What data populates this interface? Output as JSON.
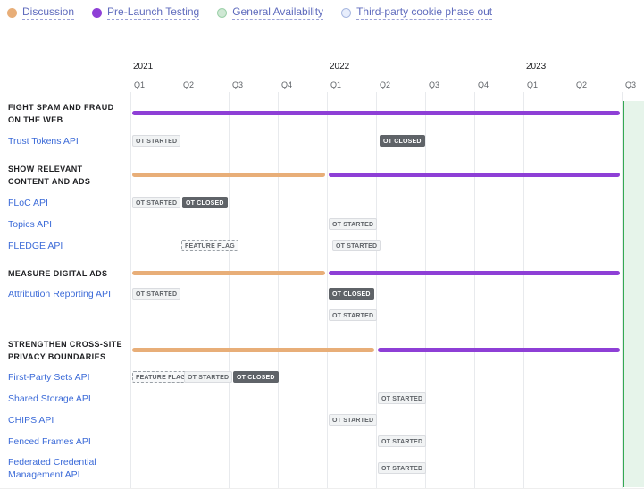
{
  "legend": {
    "discussion": {
      "label": "Discussion",
      "color": "#e8ae78"
    },
    "testing": {
      "label": "Pre-Launch Testing",
      "color": "#8e3fd6"
    },
    "ga": {
      "label": "General Availability",
      "color": "#cfe8d4"
    },
    "cookie": {
      "label": "Third-party cookie phase out",
      "color": "#e8eefc"
    }
  },
  "timeline": {
    "years": [
      "2021",
      "2022",
      "2023"
    ],
    "quarters": [
      "Q1",
      "Q2",
      "Q3",
      "Q4",
      "Q1",
      "Q2",
      "Q3",
      "Q4",
      "Q1",
      "Q2",
      "Q3"
    ]
  },
  "sections": [
    {
      "title": "FIGHT SPAM AND FRAUD\nON THE WEB"
    },
    {
      "title": "SHOW RELEVANT\nCONTENT AND ADS"
    },
    {
      "title": "MEASURE DIGITAL ADS"
    },
    {
      "title": "STRENGTHEN CROSS-SITE\nPRIVACY BOUNDARIES"
    }
  ],
  "apis": [
    {
      "name": "Trust Tokens API"
    },
    {
      "name": "FLoC API"
    },
    {
      "name": "Topics API"
    },
    {
      "name": "FLEDGE API"
    },
    {
      "name": "Attribution Reporting API"
    },
    {
      "name": "First-Party Sets API"
    },
    {
      "name": "Shared Storage API"
    },
    {
      "name": "CHIPS API"
    },
    {
      "name": "Fenced Frames API"
    },
    {
      "name": "Federated Credential\nManagement API"
    }
  ],
  "badges": {
    "ot_started": "OT STARTED",
    "ot_closed": "OT CLOSED",
    "feature_flag": "FEATURE FLAG"
  }
}
